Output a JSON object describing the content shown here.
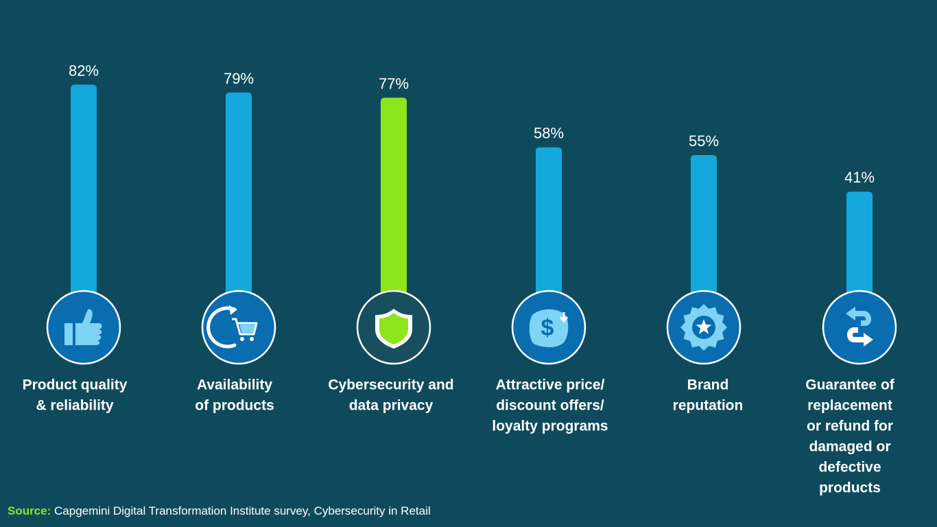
{
  "chart_data": {
    "type": "bar",
    "categories": [
      "Product quality & reliability",
      "Availability of products",
      "Cybersecurity and data privacy",
      "Attractive price/ discount offers/ loyalty programs",
      "Brand reputation",
      "Guarantee of replacement or refund for damaged or defective products"
    ],
    "category_lines": [
      [
        "Product quality",
        "& reliability"
      ],
      [
        "Availability",
        "of products"
      ],
      [
        "Cybersecurity and",
        "data privacy"
      ],
      [
        "Attractive price/",
        "discount offers/",
        "loyalty programs"
      ],
      [
        "Brand",
        "reputation"
      ],
      [
        "Guarantee of",
        "replacement",
        "or refund for",
        "damaged or",
        "defective",
        "products"
      ]
    ],
    "values": [
      82,
      79,
      77,
      58,
      55,
      41
    ],
    "value_labels": [
      "82%",
      "79%",
      "77%",
      "58%",
      "55%",
      "41%"
    ],
    "icons": [
      "thumbs-up-icon",
      "shopping-cart-refresh-icon",
      "shield-icon",
      "dollar-discount-icon",
      "star-badge-icon",
      "exchange-arrows-icon"
    ],
    "highlight_index": 2,
    "colors": {
      "background": "#0f4a5c",
      "bar": "#14a8dc",
      "highlight": "#8ee51b",
      "icon_circle": "#0a6db0",
      "icon_circle_highlight": "#174f5f",
      "icon_fill": "#7fd3f5",
      "icon_border": "#ffffff"
    }
  },
  "source": {
    "label": "Source:",
    "text": " Capgemini Digital Transformation Institute survey, Cybersecurity in Retail"
  }
}
